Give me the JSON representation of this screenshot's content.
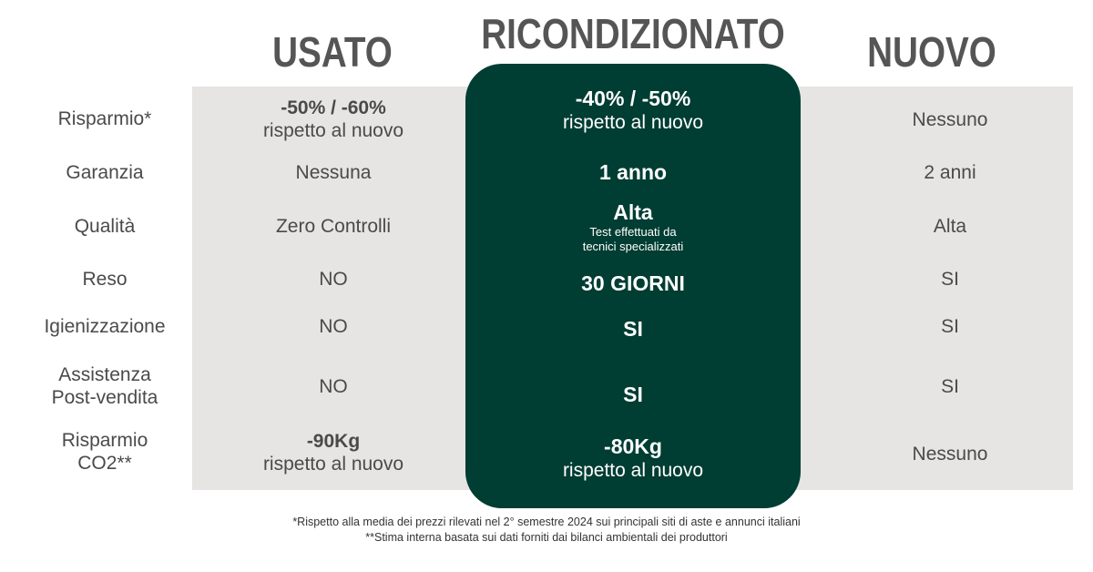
{
  "columns": {
    "usato": "USATO",
    "ricondizionato": "RICONDIZIONATO",
    "nuovo": "NUOVO"
  },
  "rows": [
    {
      "label": "Risparmio*",
      "usato": {
        "main": "-50% / -60%",
        "sub": "rispetto al nuovo"
      },
      "ricondizionato": {
        "main": "-40% / -50%",
        "sub": "rispetto al nuovo"
      },
      "nuovo": "Nessuno"
    },
    {
      "label": "Garanzia",
      "usato": "Nessuna",
      "ricondizionato": "1 anno",
      "nuovo": "2 anni"
    },
    {
      "label": "Qualità",
      "usato": "Zero Controlli",
      "ricondizionato": {
        "main": "Alta",
        "sub1": "Test effettuati da",
        "sub2": "tecnici specializzati"
      },
      "nuovo": "Alta"
    },
    {
      "label": "Reso",
      "usato": "NO",
      "ricondizionato": "30 GIORNI",
      "nuovo": "SI"
    },
    {
      "label": "Igienizzazione",
      "usato": "NO",
      "ricondizionato": "SI",
      "nuovo": "SI"
    },
    {
      "label_line1": "Assistenza",
      "label_line2": "Post-vendita",
      "usato": "NO",
      "ricondizionato": "SI",
      "nuovo": "SI"
    },
    {
      "label_line1": "Risparmio",
      "label_line2": "CO2**",
      "usato": {
        "main": "-90Kg",
        "sub": "rispetto al nuovo"
      },
      "ricondizionato": {
        "main": "-80Kg",
        "sub": "rispetto al nuovo"
      },
      "nuovo": "Nessuno"
    }
  ],
  "footnotes": [
    "*Rispetto alla media dei prezzi rilevati nel 2° semestre 2024 sui principali siti di aste e annunci italiani",
    "**Stima interna basata sui dati forniti dai bilanci ambientali dei produttori"
  ],
  "colors": {
    "band": "#e6e5e3",
    "highlight": "#003d33",
    "header_text": "#555555"
  }
}
